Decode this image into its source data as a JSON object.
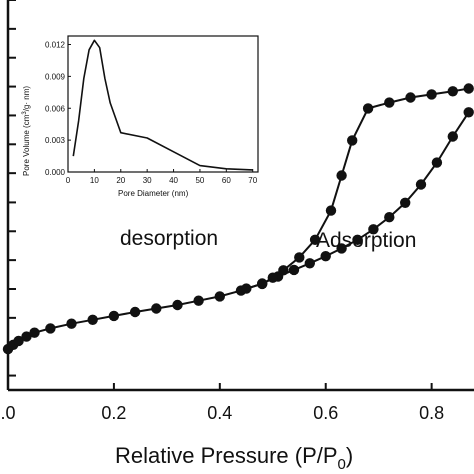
{
  "chart_data": [
    {
      "type": "line",
      "xlabel": "Relative Pressure (P/P",
      "xlabel_sub": "0",
      "xlabel_close": ")",
      "xlim": [
        0.0,
        0.88
      ],
      "x_ticks": [
        0.0,
        0.2,
        0.4,
        0.6,
        0.8
      ],
      "x_tick_labels": [
        ".0",
        "0.2",
        "0.4",
        "0.6",
        "0.8"
      ],
      "ylim": [
        0,
        1
      ],
      "y_tick_values": [
        0.037,
        0.111,
        0.185,
        0.259,
        0.333,
        0.407,
        0.481,
        0.556,
        0.63,
        0.704,
        0.778,
        0.852,
        0.926,
        1.0
      ],
      "annotations": [
        "desorption",
        "Adsorption"
      ],
      "series": [
        {
          "name": "Adsorption",
          "x": [
            0.0,
            0.01,
            0.02,
            0.035,
            0.05,
            0.08,
            0.12,
            0.16,
            0.2,
            0.24,
            0.28,
            0.32,
            0.36,
            0.4,
            0.44,
            0.48,
            0.51,
            0.54,
            0.57,
            0.6,
            0.63,
            0.66,
            0.69,
            0.72,
            0.75,
            0.78,
            0.81,
            0.84,
            0.87
          ],
          "y": [
            0.105,
            0.116,
            0.126,
            0.137,
            0.147,
            0.158,
            0.17,
            0.18,
            0.19,
            0.2,
            0.209,
            0.218,
            0.229,
            0.24,
            0.255,
            0.273,
            0.291,
            0.308,
            0.325,
            0.343,
            0.363,
            0.385,
            0.412,
            0.443,
            0.48,
            0.527,
            0.583,
            0.65,
            0.712
          ]
        },
        {
          "name": "desorption",
          "x": [
            0.45,
            0.48,
            0.5,
            0.52,
            0.55,
            0.58,
            0.61,
            0.63,
            0.65,
            0.68,
            0.72,
            0.76,
            0.8,
            0.84,
            0.87
          ],
          "y": [
            0.26,
            0.272,
            0.288,
            0.307,
            0.34,
            0.385,
            0.46,
            0.55,
            0.64,
            0.722,
            0.737,
            0.75,
            0.758,
            0.766,
            0.773
          ]
        }
      ]
    },
    {
      "type": "line",
      "xlabel": "Pore Diameter (nm)",
      "ylabel": "Pore Volume (cm",
      "ylabel_sup": "3",
      "ylabel_close": "/g· nm)",
      "xlim": [
        0,
        72
      ],
      "ylim": [
        0,
        0.0128
      ],
      "x_ticks": [
        0,
        10,
        20,
        30,
        40,
        50,
        60,
        70
      ],
      "y_ticks": [
        0.0,
        0.003,
        0.006,
        0.009,
        0.012
      ],
      "y_tick_labels": [
        "0.000",
        "0.003",
        "0.006",
        "0.009",
        "0.012"
      ],
      "x": [
        2,
        4,
        6,
        8,
        10,
        12,
        14,
        16,
        20,
        30,
        40,
        50,
        60,
        70
      ],
      "y": [
        0.0015,
        0.0048,
        0.0088,
        0.0115,
        0.0124,
        0.0117,
        0.0088,
        0.0065,
        0.0037,
        0.0032,
        0.0019,
        0.0006,
        0.0003,
        0.0002
      ]
    }
  ]
}
